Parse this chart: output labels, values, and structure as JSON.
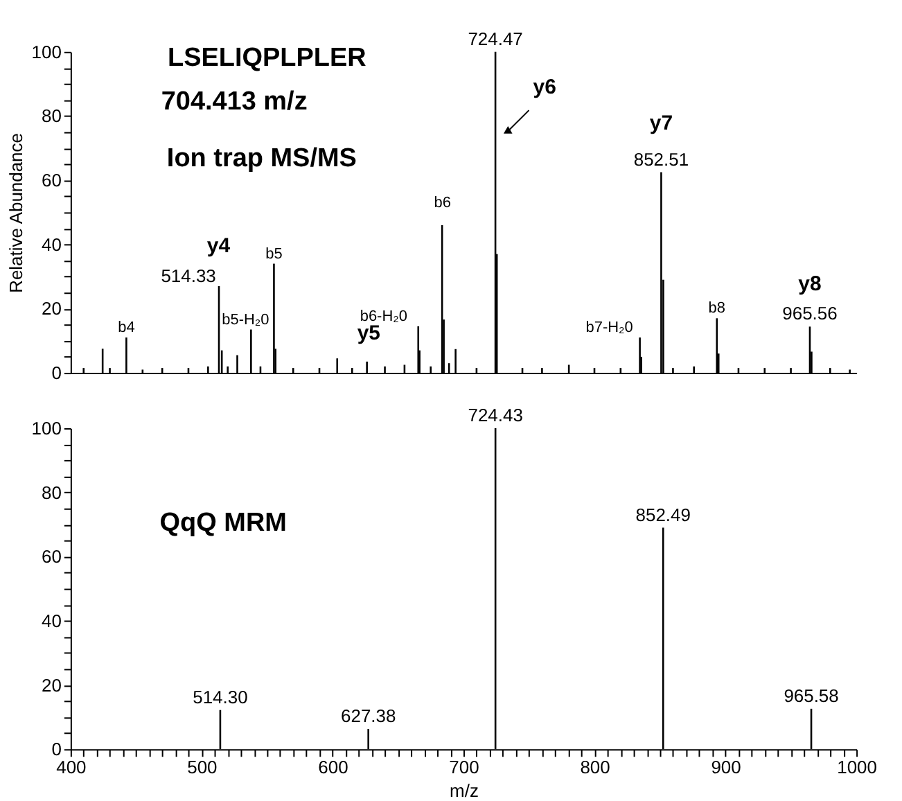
{
  "chart_data": [
    {
      "type": "bar",
      "ylabel": "Relative Abundance",
      "xlim": [
        400,
        1000
      ],
      "ylim": [
        0,
        100
      ],
      "tick_labels": "y",
      "grid": false,
      "yticks": [
        0,
        {
          "value": 5,
          "label": null
        },
        {
          "value": 10,
          "label": null
        },
        {
          "value": 15,
          "label": null
        },
        20,
        {
          "value": 25,
          "label": null
        },
        {
          "value": 30,
          "label": null
        },
        {
          "value": 35,
          "label": null
        },
        40,
        {
          "value": 45,
          "label": null
        },
        {
          "value": 50,
          "label": null
        },
        {
          "value": 55,
          "label": null
        },
        60,
        {
          "value": 65,
          "label": null
        },
        {
          "value": 70,
          "label": null
        },
        {
          "value": 75,
          "label": null
        },
        80,
        {
          "value": 85,
          "label": null
        },
        {
          "value": 90,
          "label": null
        },
        {
          "value": 95,
          "label": null
        },
        100
      ],
      "series": [
        {
          "color": "#000000",
          "x": [
            410,
            424.5,
            430,
            442.6,
            455,
            470,
            490,
            505,
            513.3,
            515.5,
            520,
            527.3,
            537.8,
            545,
            555.3,
            556.5,
            570,
            590,
            603.6,
            615,
            626.3,
            640,
            655,
            665.5,
            666.5,
            675,
            683.7,
            685,
            689,
            694,
            710,
            724.4,
            725.5,
            745,
            760,
            780.5,
            800,
            820,
            834.7,
            835.8,
            851,
            852.6,
            860,
            876,
            893.5,
            894.8,
            910,
            930,
            950,
            964.5,
            965.8,
            980,
            995
          ],
          "values": [
            1.5,
            7.5,
            1.5,
            11,
            1,
            1.5,
            1.5,
            2,
            27,
            7,
            2,
            5.5,
            13.5,
            2,
            34,
            7.5,
            1.5,
            1.5,
            4.5,
            1.5,
            3.5,
            2,
            2.5,
            14.5,
            7,
            2,
            46,
            16.6,
            3,
            7.4,
            1.5,
            100,
            37,
            1.5,
            1.5,
            2.5,
            1.5,
            1.5,
            11,
            5,
            62.5,
            29,
            1.5,
            2,
            17,
            6,
            1.5,
            1.5,
            1.5,
            14.4,
            6.6,
            1.5,
            1
          ]
        }
      ],
      "annotations": [
        "LSELIQPLPLER",
        "704.413 m/z",
        "Ion trap MS/MS",
        {
          "text": "724.47",
          "x": 724.4,
          "y": 100
        },
        "y6",
        "y7",
        {
          "text": "852.51",
          "x": 851,
          "y": 62.5
        },
        "b6",
        "y4",
        {
          "text": "514.33",
          "x": 513.3,
          "y": 27
        },
        {
          "text": "b5",
          "x": 555.3,
          "y": 34
        },
        {
          "text": "b4",
          "x": 442.6,
          "y": 11
        },
        {
          "text": "b5-H₂0",
          "x": 537.8,
          "y": 13.5
        },
        {
          "text": "b6-H₂0",
          "x": 665.5,
          "y": 14.5
        },
        "y5",
        {
          "text": "b7-H₂0",
          "x": 834.7,
          "y": 11
        },
        {
          "text": "b8",
          "x": 893.5,
          "y": 17
        },
        "y8",
        {
          "text": "965.56",
          "x": 964.5,
          "y": 14.4
        }
      ]
    },
    {
      "type": "bar",
      "xlabel": "m/z",
      "xlim": [
        400,
        1000
      ],
      "ylim": [
        0,
        100
      ],
      "grid": false,
      "xticks": [
        400,
        {
          "value": 410,
          "label": null
        },
        {
          "value": 420,
          "label": null
        },
        {
          "value": 430,
          "label": null
        },
        {
          "value": 440,
          "label": null
        },
        {
          "value": 450,
          "label": null
        },
        {
          "value": 460,
          "label": null
        },
        {
          "value": 470,
          "label": null
        },
        {
          "value": 480,
          "label": null
        },
        {
          "value": 490,
          "label": null
        },
        500,
        {
          "value": 510,
          "label": null
        },
        {
          "value": 520,
          "label": null
        },
        {
          "value": 530,
          "label": null
        },
        {
          "value": 540,
          "label": null
        },
        {
          "value": 550,
          "label": null
        },
        {
          "value": 560,
          "label": null
        },
        {
          "value": 570,
          "label": null
        },
        {
          "value": 580,
          "label": null
        },
        {
          "value": 590,
          "label": null
        },
        600,
        {
          "value": 610,
          "label": null
        },
        {
          "value": 620,
          "label": null
        },
        {
          "value": 630,
          "label": null
        },
        {
          "value": 640,
          "label": null
        },
        {
          "value": 650,
          "label": null
        },
        {
          "value": 660,
          "label": null
        },
        {
          "value": 670,
          "label": null
        },
        {
          "value": 680,
          "label": null
        },
        {
          "value": 690,
          "label": null
        },
        700,
        {
          "value": 710,
          "label": null
        },
        {
          "value": 720,
          "label": null
        },
        {
          "value": 730,
          "label": null
        },
        {
          "value": 740,
          "label": null
        },
        {
          "value": 750,
          "label": null
        },
        {
          "value": 760,
          "label": null
        },
        {
          "value": 770,
          "label": null
        },
        {
          "value": 780,
          "label": null
        },
        {
          "value": 790,
          "label": null
        },
        800,
        {
          "value": 810,
          "label": null
        },
        {
          "value": 820,
          "label": null
        },
        {
          "value": 830,
          "label": null
        },
        {
          "value": 840,
          "label": null
        },
        {
          "value": 850,
          "label": null
        },
        {
          "value": 860,
          "label": null
        },
        {
          "value": 870,
          "label": null
        },
        {
          "value": 880,
          "label": null
        },
        {
          "value": 890,
          "label": null
        },
        900,
        {
          "value": 910,
          "label": null
        },
        {
          "value": 920,
          "label": null
        },
        {
          "value": 930,
          "label": null
        },
        {
          "value": 940,
          "label": null
        },
        {
          "value": 950,
          "label": null
        },
        {
          "value": 960,
          "label": null
        },
        {
          "value": 970,
          "label": null
        },
        {
          "value": 980,
          "label": null
        },
        {
          "value": 990,
          "label": null
        },
        1000
      ],
      "yticks": [
        0,
        {
          "value": 5,
          "label": null
        },
        {
          "value": 10,
          "label": null
        },
        {
          "value": 15,
          "label": null
        },
        20,
        {
          "value": 25,
          "label": null
        },
        {
          "value": 30,
          "label": null
        },
        {
          "value": 35,
          "label": null
        },
        40,
        {
          "value": 45,
          "label": null
        },
        {
          "value": 50,
          "label": null
        },
        {
          "value": 55,
          "label": null
        },
        60,
        {
          "value": 65,
          "label": null
        },
        {
          "value": 70,
          "label": null
        },
        {
          "value": 75,
          "label": null
        },
        80,
        {
          "value": 85,
          "label": null
        },
        {
          "value": 90,
          "label": null
        },
        {
          "value": 95,
          "label": null
        },
        100
      ],
      "series": [
        {
          "color": "#000000",
          "x": [
            514.3,
            627.38,
            724.43,
            852.49,
            965.58
          ],
          "values": [
            12.2,
            6.3,
            100,
            69,
            12.6
          ]
        }
      ],
      "annotations": [
        "QqQ MRM",
        {
          "text": "514.30",
          "x": 514.3,
          "y": 12.2
        },
        {
          "text": "627.38",
          "x": 627.38,
          "y": 6.3
        },
        {
          "text": "724.43",
          "x": 724.43,
          "y": 100
        },
        {
          "text": "852.49",
          "x": 852.49,
          "y": 69
        },
        {
          "text": "965.58",
          "x": 965.58,
          "y": 12.6
        }
      ]
    }
  ]
}
